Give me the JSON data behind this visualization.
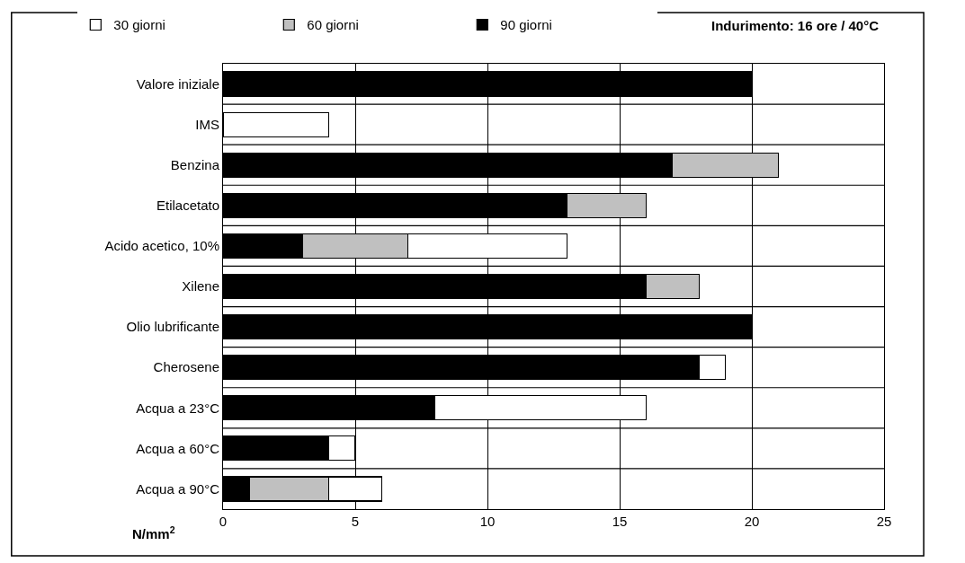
{
  "chart_data": {
    "type": "bar",
    "orientation": "horizontal",
    "stacked": true,
    "categories": [
      "Valore iniziale",
      "IMS",
      "Benzina",
      "Etilacetato",
      "Acido acetico, 10%",
      "Xilene",
      "Olio lubrificante",
      "Cherosene",
      "Acqua a 23°C",
      "Acqua a 60°C",
      "Acqua a 90°C"
    ],
    "series": [
      {
        "name": "90 giorni",
        "color": "#000000",
        "values": [
          20,
          null,
          17,
          13,
          3,
          16,
          20,
          18,
          8,
          4,
          1
        ]
      },
      {
        "name": "60 giorni",
        "color": "#c0c0c0",
        "values": [
          null,
          null,
          4,
          3,
          4,
          2,
          null,
          null,
          null,
          null,
          3
        ]
      },
      {
        "name": "30 giorni",
        "color": "#ffffff",
        "values": [
          null,
          4,
          null,
          null,
          6,
          null,
          null,
          1,
          8,
          1,
          2
        ]
      }
    ],
    "xlim": [
      0,
      25
    ],
    "xticks": [
      0,
      5,
      10,
      15,
      20,
      25
    ],
    "xlabel": "N/mm$^{2}$",
    "annotations": [
      "Indurimento: 16 ore / 40°C"
    ],
    "grid": true,
    "legend": "top"
  }
}
